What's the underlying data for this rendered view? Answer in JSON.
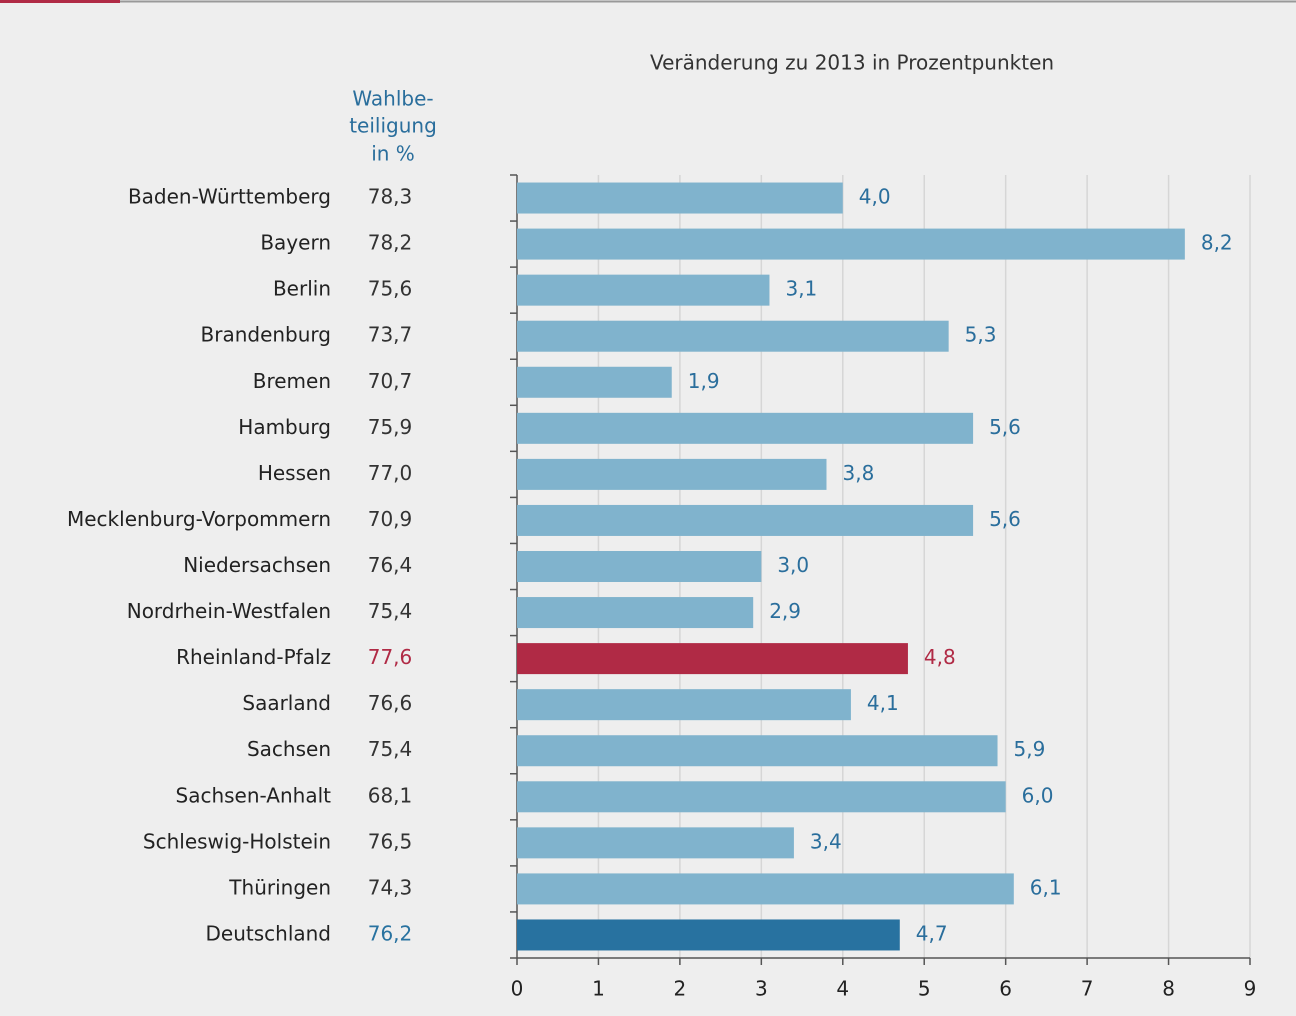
{
  "chart_data": {
    "type": "bar",
    "orientation": "horizontal",
    "title": "Veränderung zu 2013 in Prozentpunkten",
    "table_header": [
      "Wahlbe-",
      "teiligung",
      "in %"
    ],
    "categories": [
      "Baden-Württemberg",
      "Bayern",
      "Berlin",
      "Brandenburg",
      "Bremen",
      "Hamburg",
      "Hessen",
      "Mecklenburg-Vorpommern",
      "Niedersachsen",
      "Nordrhein-Westfalen",
      "Rheinland-Pfalz",
      "Saarland",
      "Sachsen",
      "Sachsen-Anhalt",
      "Schleswig-Holstein",
      "Thüringen",
      "Deutschland"
    ],
    "table_values": [
      "78,3",
      "78,2",
      "75,6",
      "73,7",
      "70,7",
      "75,9",
      "77,0",
      "70,9",
      "76,4",
      "75,4",
      "77,6",
      "76,6",
      "75,4",
      "68,1",
      "76,5",
      "74,3",
      "76,2"
    ],
    "values": [
      4.0,
      8.2,
      3.1,
      5.3,
      1.9,
      5.6,
      3.8,
      5.6,
      3.0,
      2.9,
      4.8,
      4.1,
      5.9,
      6.0,
      3.4,
      6.1,
      4.7
    ],
    "value_labels": [
      "4,0",
      "8,2",
      "3,1",
      "5,3",
      "1,9",
      "5,6",
      "3,8",
      "5,6",
      "3,0",
      "2,9",
      "4,8",
      "4,1",
      "5,9",
      "6,0",
      "3,4",
      "6,1",
      "4,7"
    ],
    "color": "#80b3cd",
    "colors": [
      "#80b3cd",
      "#80b3cd",
      "#80b3cd",
      "#80b3cd",
      "#80b3cd",
      "#80b3cd",
      "#80b3cd",
      "#80b3cd",
      "#80b3cd",
      "#80b3cd",
      "#b02a45",
      "#80b3cd",
      "#80b3cd",
      "#80b3cd",
      "#80b3cd",
      "#80b3cd",
      "#2872a0"
    ],
    "label_color": "#2a6e9c",
    "text_color": "#333333",
    "xlim": [
      0,
      9
    ],
    "xticks": [
      0,
      1,
      2,
      3,
      4,
      5,
      6,
      7,
      8,
      9
    ],
    "grid": true
  }
}
